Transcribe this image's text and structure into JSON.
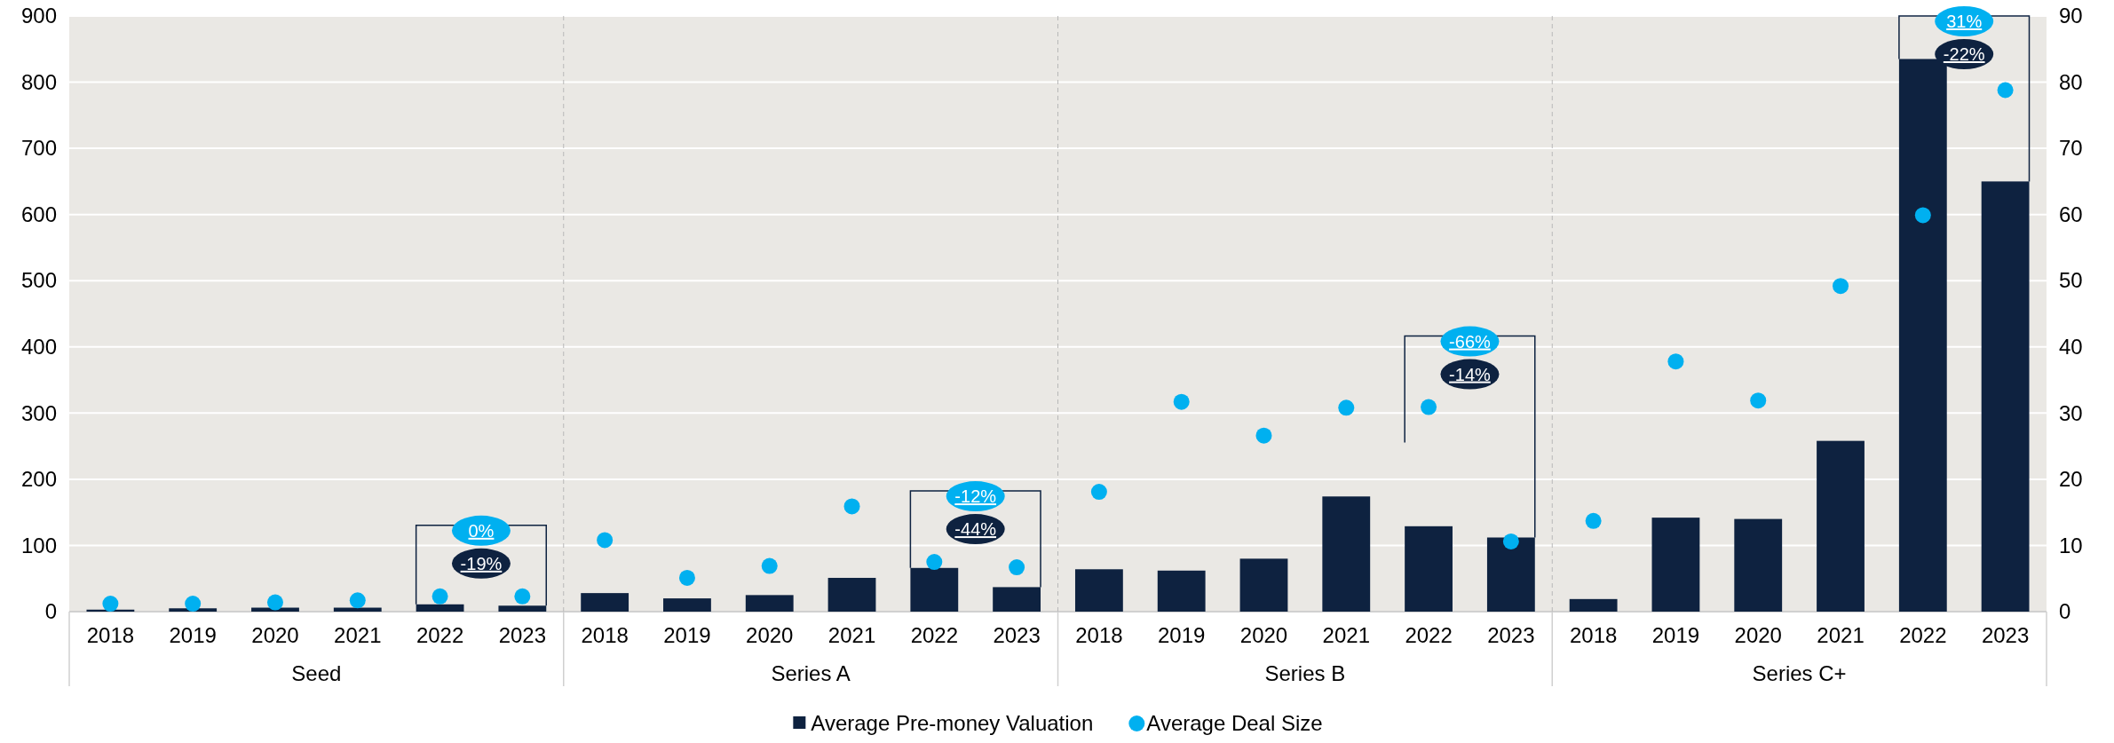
{
  "chart_data": {
    "type": "bar",
    "categories": [
      "2018",
      "2019",
      "2020",
      "2021",
      "2022",
      "2023",
      "2018",
      "2019",
      "2020",
      "2021",
      "2022",
      "2023",
      "2018",
      "2019",
      "2020",
      "2021",
      "2022",
      "2023",
      "2018",
      "2019",
      "2020",
      "2021",
      "2022",
      "2023"
    ],
    "series": [
      {
        "name": "Average Pre-money Valuation",
        "color": "#0e2240",
        "values": [
          3,
          5,
          6,
          6,
          11,
          9,
          28,
          20,
          25,
          51,
          66,
          37,
          64,
          62,
          80,
          174,
          129,
          112,
          19,
          142,
          140,
          258,
          835,
          650
        ]
      },
      {
        "name": "Average Deal Size",
        "type": "scatter",
        "axis": "y2",
        "color": "#00b0f0",
        "values": [
          1.2,
          1.2,
          1.4,
          1.7,
          2.3,
          2.3,
          10.8,
          5.1,
          6.9,
          15.9,
          7.5,
          6.7,
          18.1,
          31.7,
          26.6,
          30.8,
          30.9,
          10.6,
          13.7,
          37.8,
          31.9,
          49.2,
          59.9,
          78.8
        ]
      }
    ],
    "ylim": [
      0,
      900
    ],
    "yticks": [
      0,
      100,
      200,
      300,
      400,
      500,
      600,
      700,
      800,
      900
    ],
    "y2lim": [
      0,
      90
    ],
    "y2ticks": [
      0,
      10,
      20,
      30,
      40,
      50,
      60,
      70,
      80,
      90
    ],
    "grid": "y",
    "legend": "bottom",
    "marker": "circle",
    "annotations": [
      "Seed",
      "Series A",
      "Series B",
      "Series C+",
      "0%",
      "-19%",
      "-12%",
      "-44%",
      "-66%",
      "-14%",
      "31%",
      "-22%"
    ]
  }
}
